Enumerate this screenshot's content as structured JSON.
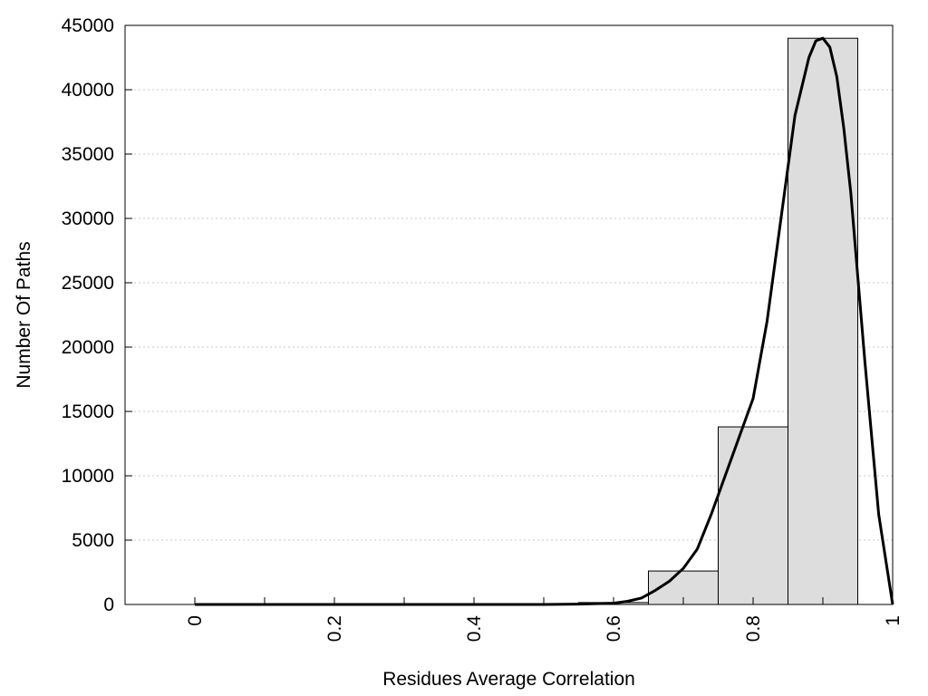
{
  "chart_data": {
    "type": "bar",
    "title": "",
    "xlabel": "Residues Average Correlation",
    "ylabel": "Number Of Paths",
    "xlim": [
      -0.1,
      1.0
    ],
    "ylim": [
      0,
      45000
    ],
    "grid": "horizontal dotted",
    "bar_color": "#dddddd",
    "curve_color": "#000000",
    "x_ticks": [
      "0",
      "0.2",
      "0.4",
      "0.6",
      "0.8",
      "1"
    ],
    "x_tick_values": [
      0,
      0.2,
      0.4,
      0.6,
      0.8,
      1.0
    ],
    "x_minor_ticks": [
      0.1,
      0.3,
      0.5,
      0.7,
      0.9
    ],
    "y_ticks": [
      "0",
      "5000",
      "10000",
      "15000",
      "20000",
      "25000",
      "30000",
      "35000",
      "40000",
      "45000"
    ],
    "y_tick_values": [
      0,
      5000,
      10000,
      15000,
      20000,
      25000,
      30000,
      35000,
      40000,
      45000
    ],
    "bins": [
      {
        "x0": 0.0,
        "x1": 0.1,
        "value": 0
      },
      {
        "x0": 0.1,
        "x1": 0.2,
        "value": 0
      },
      {
        "x0": 0.2,
        "x1": 0.3,
        "value": 0
      },
      {
        "x0": 0.3,
        "x1": 0.4,
        "value": 0
      },
      {
        "x0": 0.4,
        "x1": 0.5,
        "value": 0
      },
      {
        "x0": 0.5,
        "x1": 0.55,
        "value": 20
      },
      {
        "x0": 0.55,
        "x1": 0.65,
        "value": 150
      },
      {
        "x0": 0.65,
        "x1": 0.75,
        "value": 2600
      },
      {
        "x0": 0.75,
        "x1": 0.85,
        "value": 13800
      },
      {
        "x0": 0.85,
        "x1": 0.95,
        "value": 44000
      }
    ],
    "curve": {
      "x": [
        0.0,
        0.1,
        0.2,
        0.3,
        0.4,
        0.5,
        0.55,
        0.6,
        0.62,
        0.64,
        0.66,
        0.68,
        0.7,
        0.72,
        0.74,
        0.76,
        0.78,
        0.8,
        0.82,
        0.84,
        0.86,
        0.88,
        0.89,
        0.9,
        0.91,
        0.92,
        0.93,
        0.94,
        0.96,
        0.98,
        1.0
      ],
      "y": [
        0,
        0,
        0,
        0,
        0,
        0,
        30,
        100,
        250,
        500,
        1100,
        1800,
        2800,
        4300,
        7000,
        10000,
        13000,
        16000,
        22000,
        30000,
        38000,
        42500,
        43800,
        44000,
        43300,
        41000,
        37000,
        32000,
        19000,
        7000,
        0
      ]
    }
  }
}
